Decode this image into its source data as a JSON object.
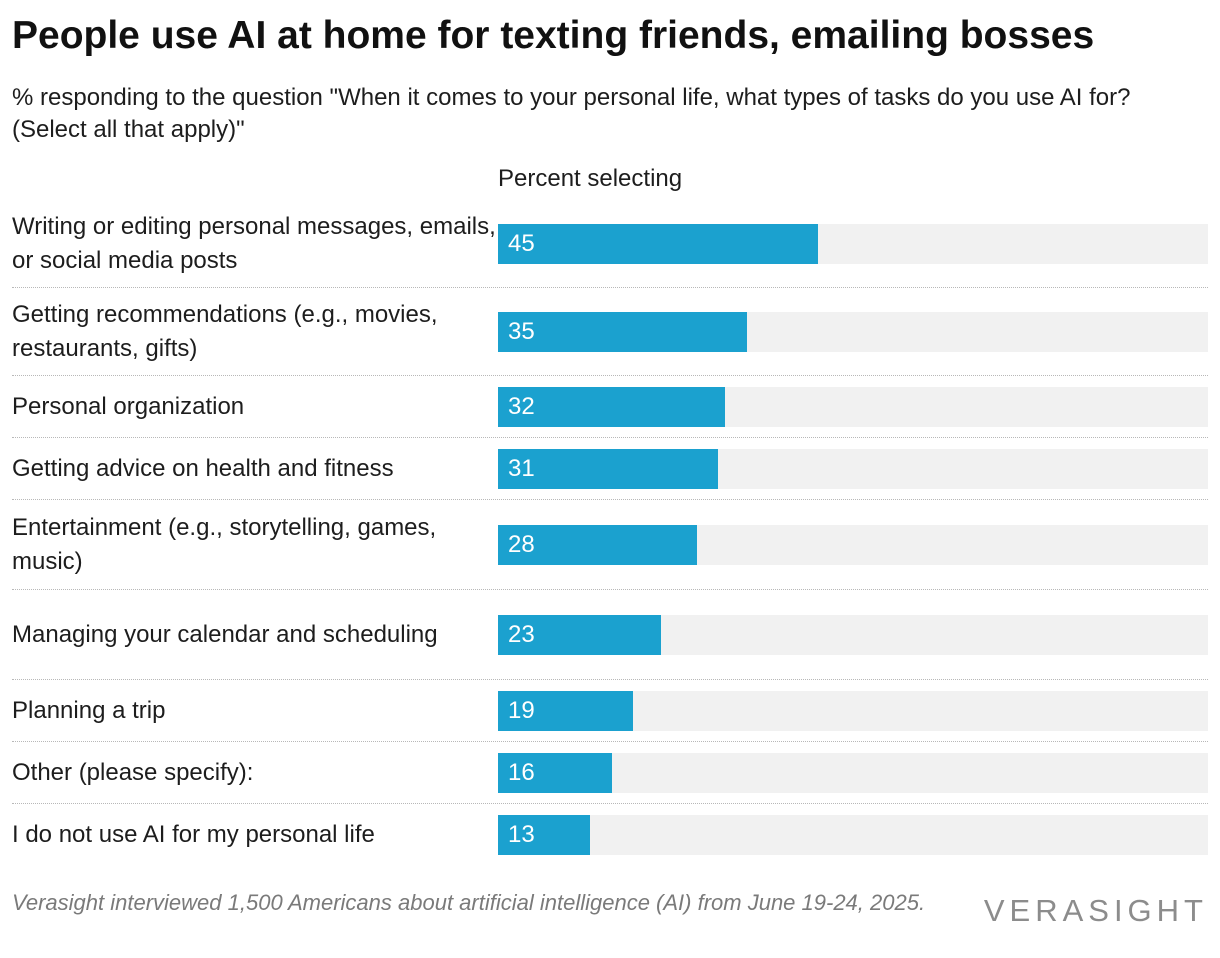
{
  "title": "People use AI at home for texting friends, emailing bosses",
  "subtitle": "% responding to the question \"When it comes to your personal life, what types of tasks do you use AI for? (Select all that apply)\"",
  "chart_data": {
    "type": "bar",
    "orientation": "horizontal",
    "column_header": "Percent selecting",
    "xlim": [
      0,
      100
    ],
    "bar_color": "#1ba1cf",
    "track_color": "#f1f1f1",
    "categories": [
      "Writing or editing personal messages, emails, or social media posts",
      "Getting recommendations (e.g., movies, restaurants, gifts)",
      "Personal organization",
      "Getting advice on health and fitness",
      "Entertainment (e.g., storytelling, games, music)",
      "Managing your calendar and scheduling",
      "Planning a trip",
      "Other (please specify):",
      "I do not use AI for my personal life"
    ],
    "values": [
      45,
      35,
      32,
      31,
      28,
      23,
      19,
      16,
      13
    ]
  },
  "note": "Verasight interviewed 1,500 Americans about artificial intelligence (AI) from June 19-24, 2025.",
  "logo_text": "VERASIGHT"
}
